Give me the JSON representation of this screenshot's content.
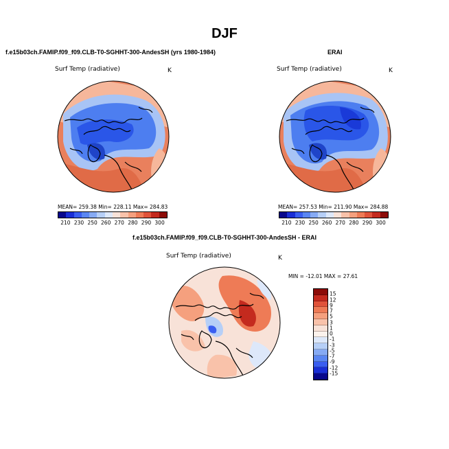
{
  "title": "DJF",
  "panels": [
    {
      "name": "model",
      "title": "f.e15b03ch.FAMIP.f09_f09.CLB-T0-SGHHT-300-AndesSH (yrs 1980-1984)",
      "variable": "Surf Temp (radiative)",
      "units": "K",
      "stats": "MEAN= 259.38   Min= 228.11   Max= 284.83"
    },
    {
      "name": "obs",
      "title": "ERAI",
      "variable": "Surf Temp (radiative)",
      "units": "K",
      "stats": "MEAN= 257.53   Min= 211.90   Max= 284.88"
    },
    {
      "name": "diff",
      "title": "f.e15b03ch.FAMIP.f09_f09.CLB-T0-SGHHT-300-AndesSH - ERAI",
      "variable": "Surf Temp (radiative)",
      "units": "K",
      "stats": "MIN = -12.01  MAX =  27.61"
    }
  ],
  "abs_colorbar": {
    "labels": [
      "210",
      "230",
      "250",
      "260",
      "270",
      "280",
      "290",
      "300"
    ],
    "colors": [
      "#08088c",
      "#1a2fd6",
      "#3a5ef0",
      "#5a86f2",
      "#86aaf4",
      "#b6cff7",
      "#dde8fa",
      "#f8e2d8",
      "#f9c2aa",
      "#f5a07e",
      "#ee7b56",
      "#e0533a",
      "#c42a1e",
      "#8c0c08"
    ]
  },
  "diff_colorbar": {
    "labels": [
      "15",
      "12",
      "9",
      "7",
      "5",
      "3",
      "1",
      "0",
      "-1",
      "-3",
      "-5",
      "-7",
      "-9",
      "-12",
      "-15"
    ],
    "colors": [
      "#8c0c08",
      "#c42a1e",
      "#e0533a",
      "#ee7b56",
      "#f5a07e",
      "#f9c2aa",
      "#f8e2d8",
      "#fbf2ec",
      "#dde8fa",
      "#b6cff7",
      "#86aaf4",
      "#5a86f2",
      "#3a5ef0",
      "#1a2fd6",
      "#08088c"
    ]
  },
  "colors": {
    "warm": "#e9805d",
    "warm_light": "#f6b79b",
    "cold": "#4d7ef0",
    "cold_deep": "#2a56e8",
    "cold_light": "#a8c4f5",
    "outline": "#000000"
  }
}
